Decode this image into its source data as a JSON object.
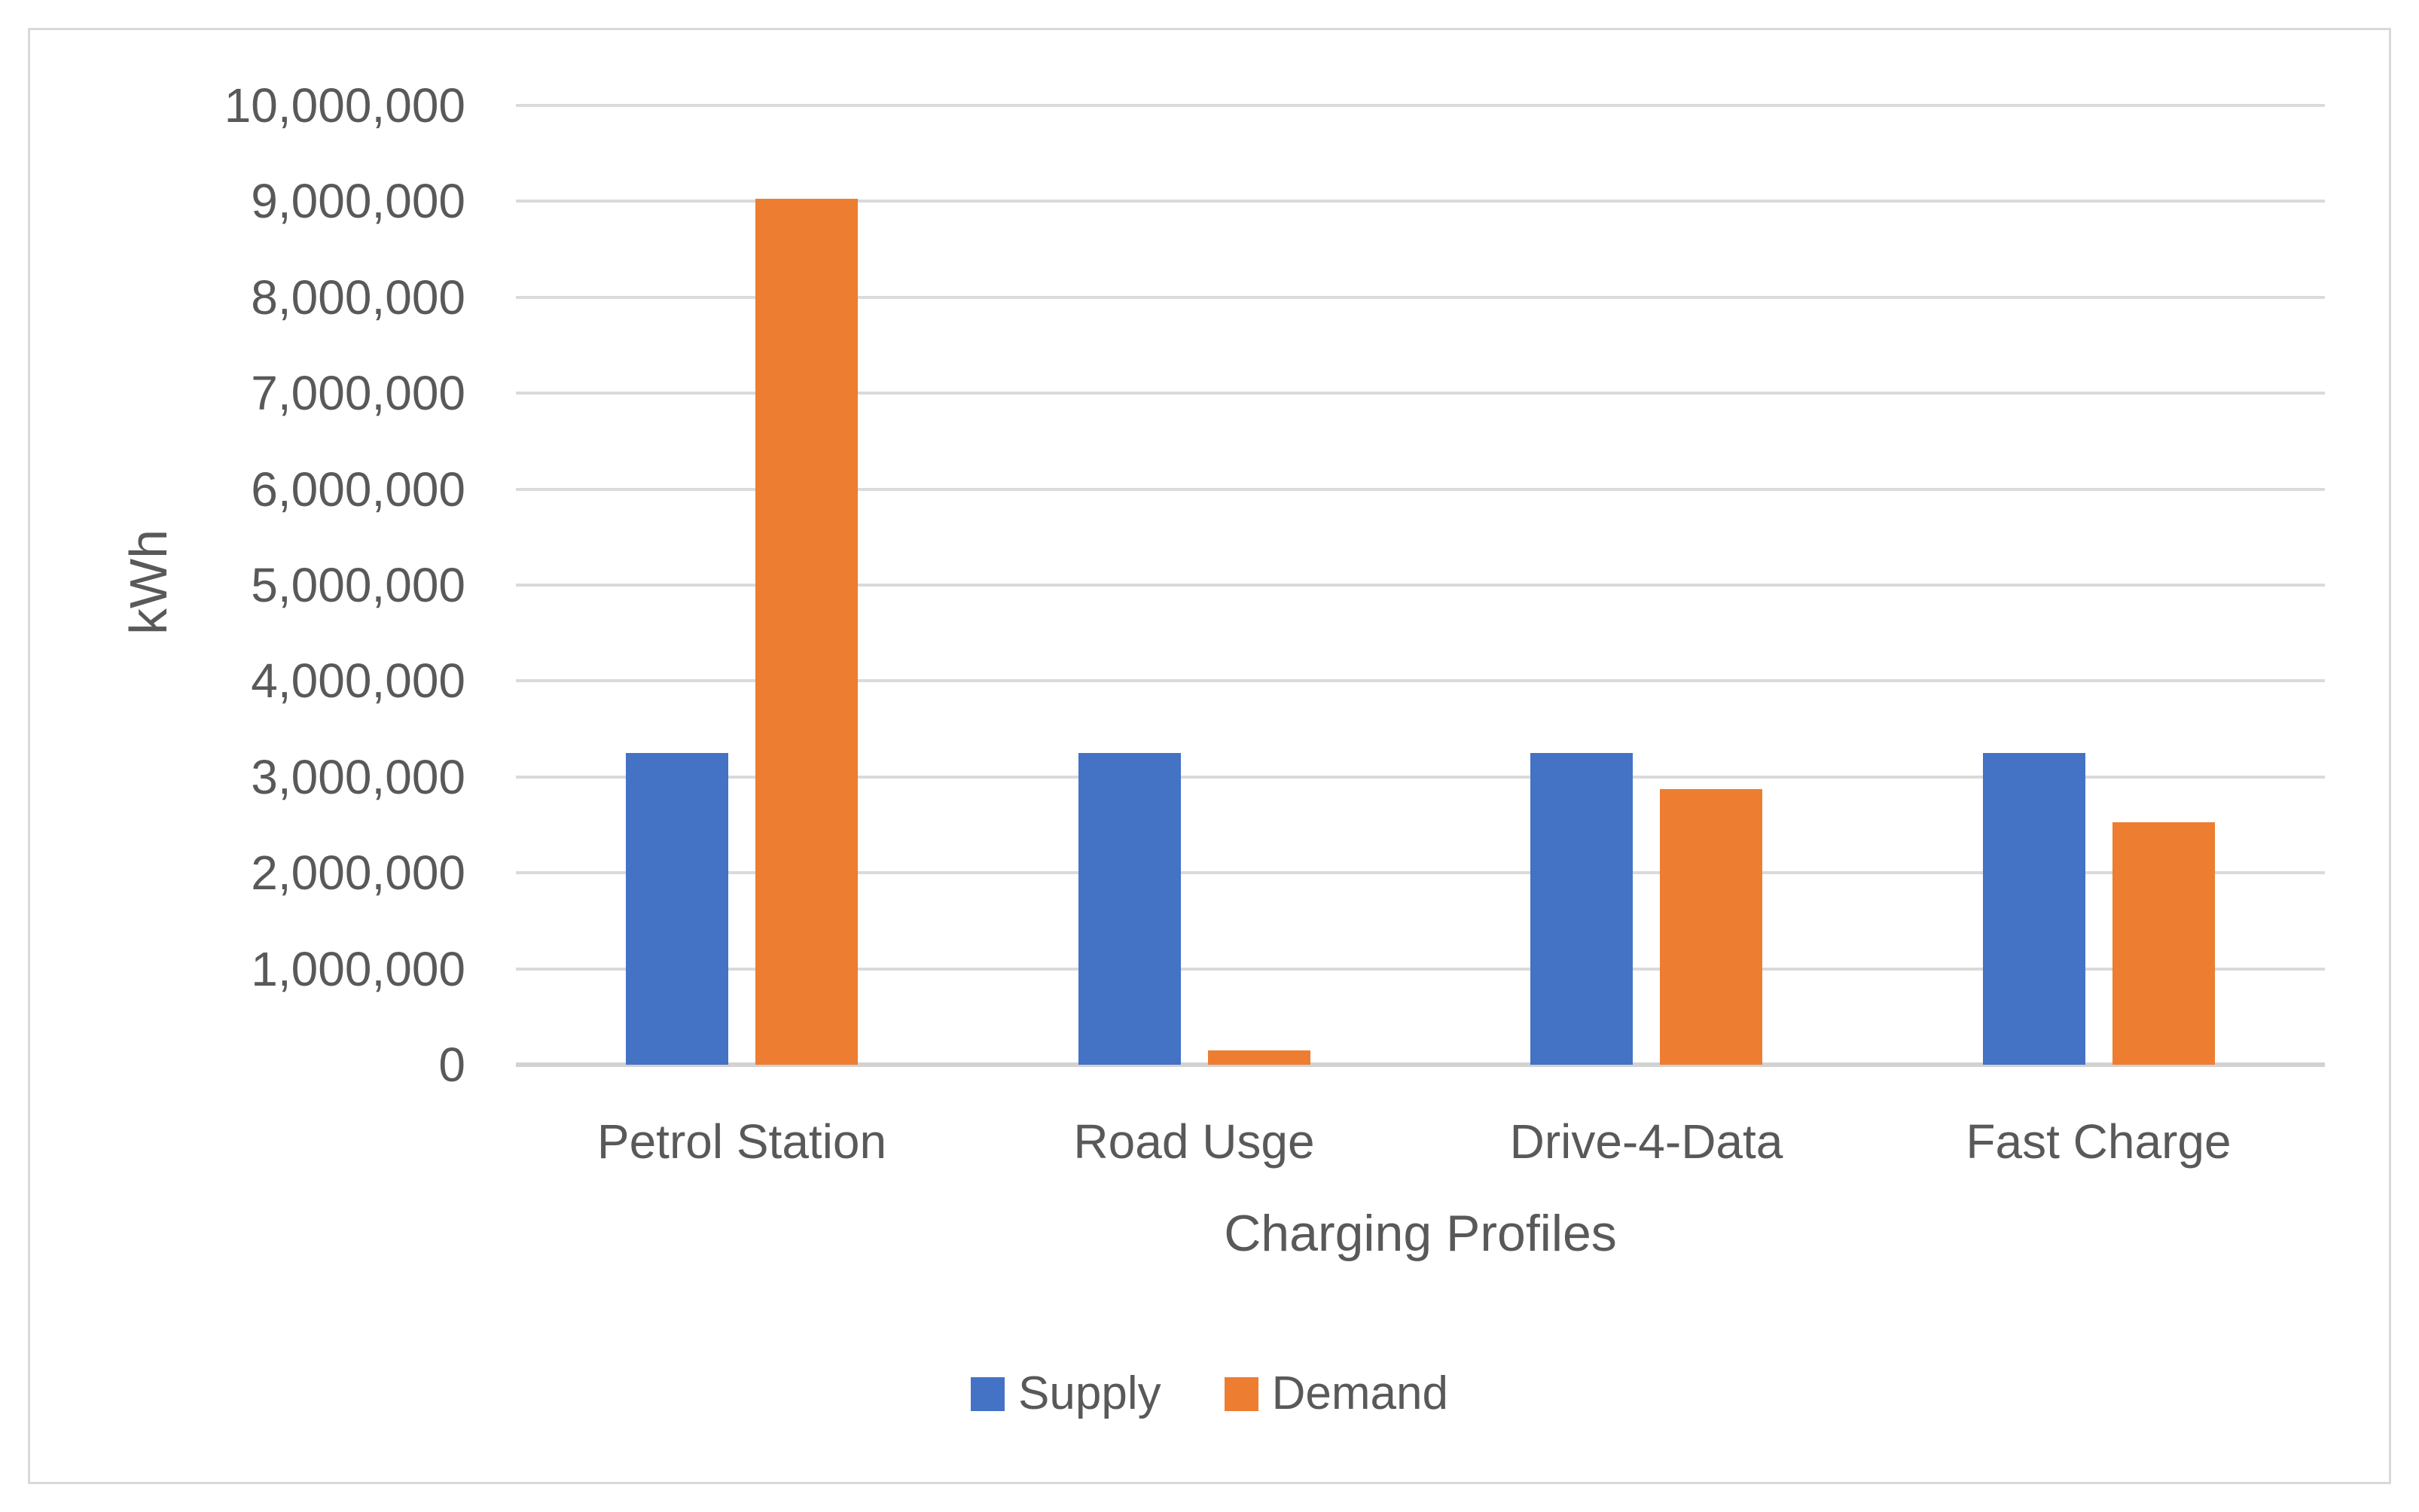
{
  "chart_data": {
    "type": "bar",
    "title": "",
    "categories": [
      "Petrol Station",
      "Road Usge",
      "Drive-4-Data",
      "Fast Charge"
    ],
    "series": [
      {
        "name": "Supply",
        "color": "#4472C4",
        "values": [
          3250000,
          3250000,
          3250000,
          3250000
        ]
      },
      {
        "name": "Demand",
        "color": "#ED7D31",
        "values": [
          9030000,
          150000,
          2870000,
          2530000
        ]
      }
    ],
    "xlabel": "Charging Profiles",
    "ylabel": "kWh",
    "ylim": [
      0,
      10000000
    ],
    "ytick_step": 1000000,
    "ytick_labels": [
      "0",
      "1,000,000",
      "2,000,000",
      "3,000,000",
      "4,000,000",
      "5,000,000",
      "6,000,000",
      "7,000,000",
      "8,000,000",
      "9,000,000",
      "10,000,000"
    ],
    "grid": true,
    "legend_position": "bottom"
  },
  "colors": {
    "supply": "#4472C4",
    "demand": "#ED7D31",
    "text": "#595959",
    "gridline": "#DADADA",
    "axis_line": "#D2D2D2",
    "frame_border": "#D9D9D9",
    "background": "#FFFFFF"
  }
}
